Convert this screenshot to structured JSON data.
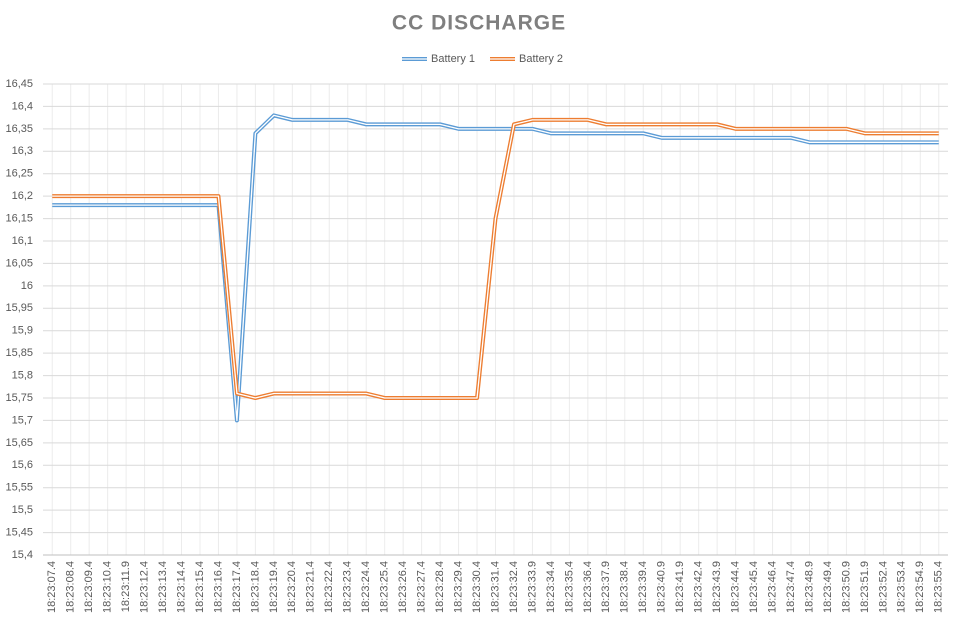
{
  "chart_data": {
    "type": "line",
    "title": "CC DISCHARGE",
    "categories": [
      "18:23:07.4",
      "18:23:08.4",
      "18:23:09.4",
      "18:23:10.4",
      "18:23:11.9",
      "18:23:12.4",
      "18:23:13.4",
      "18:23:14.4",
      "18:23:15.4",
      "18:23:16.4",
      "18:23:17.4",
      "18:23:18.4",
      "18:23:19.4",
      "18:23:20.4",
      "18:23:21.4",
      "18:23:22.4",
      "18:23:23.4",
      "18:23:24.4",
      "18:23:25.4",
      "18:23:26.4",
      "18:23:27.4",
      "18:23:28.4",
      "18:23:29.4",
      "18:23:30.4",
      "18:23:31.4",
      "18:23:32.4",
      "18:23:33.9",
      "18:23:34.4",
      "18:23:35.4",
      "18:23:36.4",
      "18:23:37.9",
      "18:23:38.4",
      "18:23:39.4",
      "18:23:40.9",
      "18:23:41.9",
      "18:23:42.4",
      "18:23:43.9",
      "18:23:44.4",
      "18:23:45.4",
      "18:23:46.4",
      "18:23:47.4",
      "18:23:48.9",
      "18:23:49.4",
      "18:23:50.9",
      "18:23:51.9",
      "18:23:52.4",
      "18:23:53.4",
      "18:23:54.9",
      "18:23:55.4"
    ],
    "series": [
      {
        "name": "Battery 1",
        "color": "#5b9bd5",
        "values": [
          16.18,
          16.18,
          16.18,
          16.18,
          16.18,
          16.18,
          16.18,
          16.18,
          16.18,
          16.18,
          15.7,
          16.34,
          16.38,
          16.37,
          16.37,
          16.37,
          16.37,
          16.36,
          16.36,
          16.36,
          16.36,
          16.36,
          16.35,
          16.35,
          16.35,
          16.35,
          16.35,
          16.34,
          16.34,
          16.34,
          16.34,
          16.34,
          16.34,
          16.33,
          16.33,
          16.33,
          16.33,
          16.33,
          16.33,
          16.33,
          16.33,
          16.32,
          16.32,
          16.32,
          16.32,
          16.32,
          16.32,
          16.32,
          16.32
        ]
      },
      {
        "name": "Battery 2",
        "color": "#ed7d31",
        "values": [
          16.2,
          16.2,
          16.2,
          16.2,
          16.2,
          16.2,
          16.2,
          16.2,
          16.2,
          16.2,
          15.76,
          15.75,
          15.76,
          15.76,
          15.76,
          15.76,
          15.76,
          15.76,
          15.75,
          15.75,
          15.75,
          15.75,
          15.75,
          15.75,
          16.15,
          16.36,
          16.37,
          16.37,
          16.37,
          16.37,
          16.36,
          16.36,
          16.36,
          16.36,
          16.36,
          16.36,
          16.36,
          16.35,
          16.35,
          16.35,
          16.35,
          16.35,
          16.35,
          16.35,
          16.34,
          16.34,
          16.34,
          16.34,
          16.34
        ]
      }
    ],
    "ylim": [
      15.4,
      16.45
    ],
    "yticks": [
      {
        "value": 15.4,
        "label": "15,4"
      },
      {
        "value": 15.45,
        "label": "15,45"
      },
      {
        "value": 15.5,
        "label": "15,5"
      },
      {
        "value": 15.55,
        "label": "15,55"
      },
      {
        "value": 15.6,
        "label": "15,6"
      },
      {
        "value": 15.65,
        "label": "15,65"
      },
      {
        "value": 15.7,
        "label": "15,7"
      },
      {
        "value": 15.75,
        "label": "15,75"
      },
      {
        "value": 15.8,
        "label": "15,8"
      },
      {
        "value": 15.85,
        "label": "15,85"
      },
      {
        "value": 15.9,
        "label": "15,9"
      },
      {
        "value": 15.95,
        "label": "15,95"
      },
      {
        "value": 16,
        "label": "16"
      },
      {
        "value": 16.05,
        "label": "16,05"
      },
      {
        "value": 16.1,
        "label": "16,1"
      },
      {
        "value": 16.15,
        "label": "16,15"
      },
      {
        "value": 16.2,
        "label": "16,2"
      },
      {
        "value": 16.25,
        "label": "16,25"
      },
      {
        "value": 16.3,
        "label": "16,3"
      },
      {
        "value": 16.35,
        "label": "16,35"
      },
      {
        "value": 16.4,
        "label": "16,4"
      },
      {
        "value": 16.45,
        "label": "16,45"
      }
    ],
    "grid": true,
    "legend": "top"
  }
}
